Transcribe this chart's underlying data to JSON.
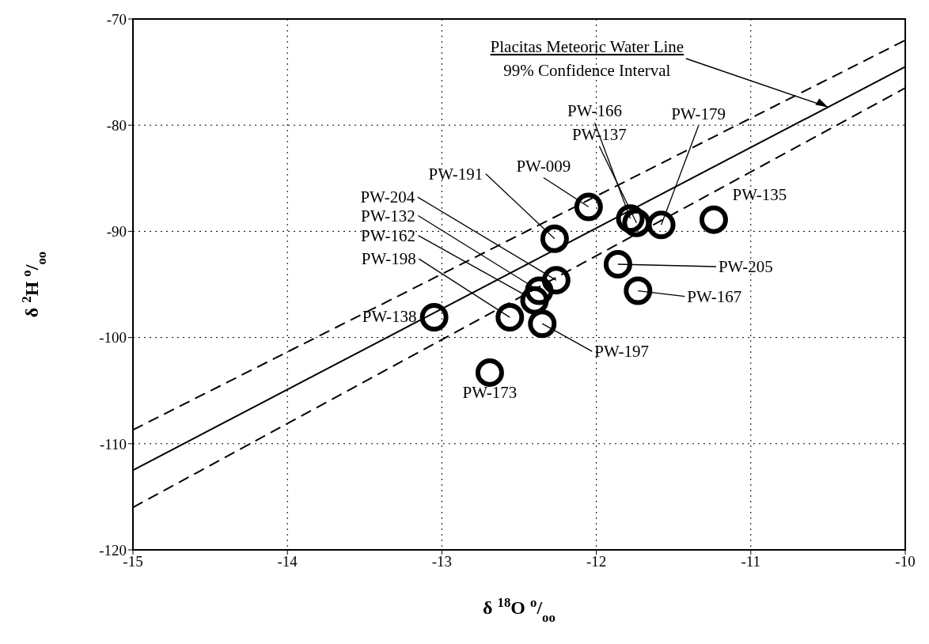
{
  "chart_data": {
    "type": "scatter",
    "xlabel": "δ $^{18}$O $^{o}$/$_{oo}$",
    "ylabel": "δ $^{2}$H $^{o}$/$_{oo}$",
    "xlim": [
      -15,
      -10
    ],
    "xticks": [
      -15,
      -14,
      -13,
      -12,
      -11,
      -10
    ],
    "ylim": [
      -120,
      -70
    ],
    "yticks": [
      -120,
      -110,
      -100,
      -90,
      -80,
      -70
    ],
    "grid": true,
    "legend": false,
    "series": [
      {
        "type": "scatter",
        "color": "#000000",
        "marker": "circle",
        "x": [
          -13.05,
          -12.27,
          -12.05,
          -11.78,
          -11.74,
          -11.58,
          -11.24,
          -11.86,
          -11.73,
          -12.26,
          -12.37,
          -12.4,
          -12.56,
          -12.35,
          -12.69
        ],
        "values": [
          -98.1,
          -90.7,
          -87.7,
          -88.8,
          -89.2,
          -89.4,
          -88.9,
          -93.1,
          -95.6,
          -94.6,
          -95.6,
          -96.5,
          -98.1,
          -98.7,
          -103.3
        ]
      },
      {
        "type": "line",
        "color": "#000000",
        "marker": "none",
        "line_style": "solid",
        "x": [
          -15,
          -10
        ],
        "values": [
          -112.5,
          -74.5
        ]
      },
      {
        "type": "line",
        "color": "#000000",
        "marker": "none",
        "line_style": "dashed",
        "x": [
          -15,
          -10
        ],
        "values": [
          -108.7,
          -72
        ]
      },
      {
        "type": "line",
        "color": "#000000",
        "marker": "none",
        "line_style": "dashed",
        "x": [
          -15,
          -10
        ],
        "values": [
          -116,
          -76.5
        ]
      }
    ],
    "annotations": [
      {
        "text": "Placitas Meteoric Water Line",
        "x": -10.5,
        "y": -78.3
      },
      "99% Confidence Interval",
      {
        "text": "PW-138",
        "x": -13.05,
        "y": -98.1
      },
      {
        "text": "PW-191",
        "x": -12.27,
        "y": -90.7
      },
      {
        "text": "PW-009",
        "x": -12.05,
        "y": -87.7
      },
      {
        "text": "PW-166",
        "x": -11.78,
        "y": -88.8
      },
      {
        "text": "PW-137",
        "x": -11.74,
        "y": -89.2
      },
      {
        "text": "PW-179",
        "x": -11.58,
        "y": -89.4
      },
      {
        "text": "PW-135",
        "x": -11.24,
        "y": -88.9
      },
      {
        "text": "PW-205",
        "x": -11.86,
        "y": -93.1
      },
      {
        "text": "PW-167",
        "x": -11.73,
        "y": -95.6
      },
      {
        "text": "PW-204",
        "x": -12.26,
        "y": -94.6
      },
      {
        "text": "PW-132",
        "x": -12.37,
        "y": -95.6
      },
      {
        "text": "PW-162",
        "x": -12.4,
        "y": -96.5
      },
      {
        "text": "PW-198",
        "x": -12.56,
        "y": -98.1
      },
      {
        "text": "PW-197",
        "x": -12.35,
        "y": -98.7
      },
      {
        "text": "PW-173",
        "x": -12.69,
        "y": -103.3
      }
    ]
  }
}
